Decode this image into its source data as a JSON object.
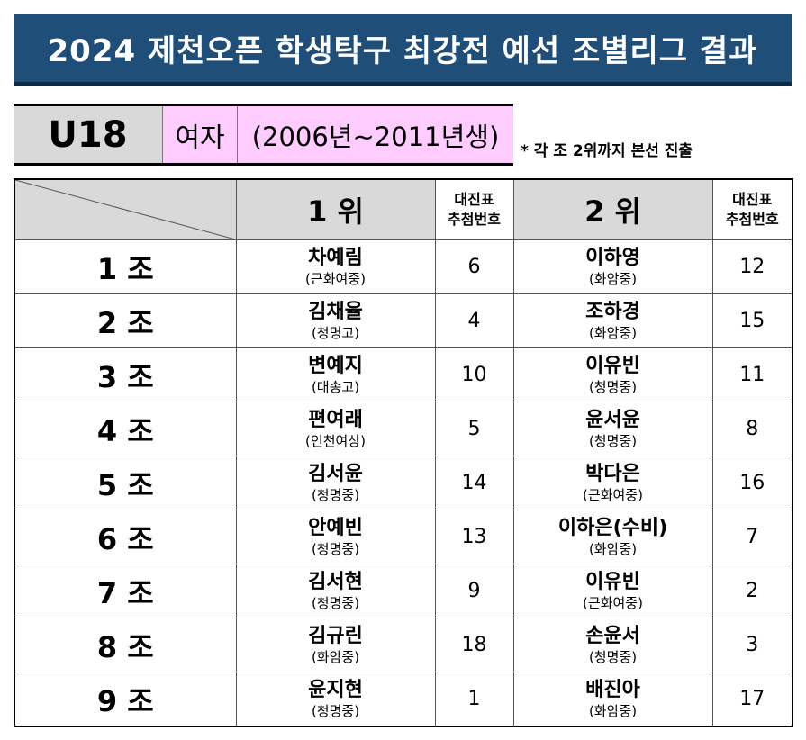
{
  "title": "2024 제천오픈 학생탁구 최강전 예선 조별리그 결과",
  "category": {
    "code": "U18",
    "gender": "여자",
    "years": "(2006년~2011년생)"
  },
  "note": "* 각 조 2위까지 본선 진출",
  "table": {
    "headers": {
      "first": "1 위",
      "second": "2 위",
      "draw_line1": "대진표",
      "draw_line2": "추첨번호"
    },
    "rows": [
      {
        "group": "1 조",
        "first_name": "차예림",
        "first_school": "(근화여중)",
        "first_draw": "6",
        "second_name": "이하영",
        "second_school": "(화암중)",
        "second_draw": "12"
      },
      {
        "group": "2 조",
        "first_name": "김채율",
        "first_school": "(청명고)",
        "first_draw": "4",
        "second_name": "조하경",
        "second_school": "(화암중)",
        "second_draw": "15"
      },
      {
        "group": "3 조",
        "first_name": "변예지",
        "first_school": "(대송고)",
        "first_draw": "10",
        "second_name": "이유빈",
        "second_school": "(청명중)",
        "second_draw": "11"
      },
      {
        "group": "4 조",
        "first_name": "편여래",
        "first_school": "(인천여상)",
        "first_draw": "5",
        "second_name": "윤서윤",
        "second_school": "(청명중)",
        "second_draw": "8"
      },
      {
        "group": "5 조",
        "first_name": "김서윤",
        "first_school": "(청명중)",
        "first_draw": "14",
        "second_name": "박다은",
        "second_school": "(근화여중)",
        "second_draw": "16"
      },
      {
        "group": "6 조",
        "first_name": "안예빈",
        "first_school": "(청명중)",
        "first_draw": "13",
        "second_name": "이하은(수비)",
        "second_school": "(화암중)",
        "second_draw": "7"
      },
      {
        "group": "7 조",
        "first_name": "김서현",
        "first_school": "(청명중)",
        "first_draw": "9",
        "second_name": "이유빈",
        "second_school": "(근화여중)",
        "second_draw": "2"
      },
      {
        "group": "8 조",
        "first_name": "김규린",
        "first_school": "(화암중)",
        "first_draw": "18",
        "second_name": "손윤서",
        "second_school": "(청명중)",
        "second_draw": "3"
      },
      {
        "group": "9 조",
        "first_name": "윤지현",
        "first_school": "(청명중)",
        "first_draw": "1",
        "second_name": "배진아",
        "second_school": "(화암중)",
        "second_draw": "17"
      }
    ]
  },
  "colors": {
    "title_bg": "#1f4e79",
    "header_gray": "#d9d9d9",
    "category_pink": "#ffccff"
  }
}
